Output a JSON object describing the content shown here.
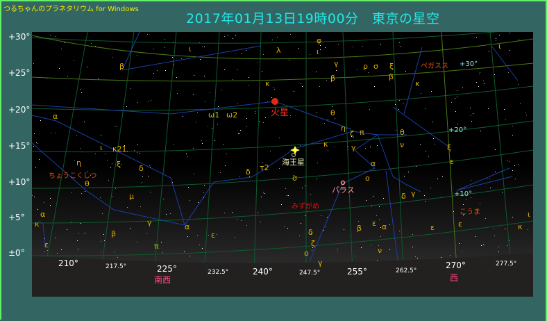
{
  "app_title": "つるちゃんのプラネタリウム for Windows",
  "heading": "2017年01月13日19時00分　東京の星空",
  "dec_axis": [
    "+30°",
    "+25°",
    "+20°",
    "+15°",
    "+10°",
    "+5°",
    "±0°"
  ],
  "azimuth_axis": [
    "210°",
    "217.5°",
    "225°",
    "232.5°",
    "240°",
    "247.5°",
    "255°",
    "262.5°",
    "270°",
    "277.5°"
  ],
  "directions": {
    "southwest": "南西",
    "west": "西"
  },
  "planets": {
    "mars": "火星",
    "neptune": "海王星",
    "pallas": "パラス"
  },
  "constellations": {
    "sculptor": "ちょうこくしつ",
    "aquarius": "みずがめ",
    "pegasus": "ペガスス",
    "equuleus": "こうま"
  },
  "grid_labels": [
    "+30°",
    "+20°",
    "+10°"
  ],
  "greek_labels": [
    "β",
    "α",
    "ι",
    "κ21",
    "η",
    "ξ",
    "δ",
    "θ",
    "μ",
    "γ",
    "β",
    "α",
    "κ",
    "ε",
    "π",
    "α",
    "ε",
    "ι",
    "ω1",
    "ω2",
    "λ",
    "κ",
    "δ",
    "τ2",
    "σ",
    "ι",
    "φ",
    "θ",
    "κ",
    "γ",
    "ρ",
    "σ",
    "β",
    "η",
    "ζ",
    "π",
    "γ",
    "α",
    "ο",
    "θ",
    "ν",
    "ξ",
    "ε",
    "β",
    "α",
    "δ",
    "γ",
    "ε",
    "κ",
    "ι",
    "ε",
    "ξ",
    "β",
    "ε",
    "ζ",
    "ο",
    "ν",
    "κ",
    "ι",
    "δ",
    "γ"
  ],
  "colors": {
    "background": "#336663",
    "sky": "#000000",
    "grid": "#0e5a2e",
    "ecliptic": "#5a8a14",
    "constellation_line": "#1a3fa8",
    "greek": "#e0b000",
    "constellation_name": "#e05010",
    "planet": "#ff3020",
    "neptune_label": "#f0f0c0",
    "pallas": "#ff9090",
    "direction": "#ff4a8a",
    "title": "#22e8e8",
    "app_title": "#f0f000"
  }
}
